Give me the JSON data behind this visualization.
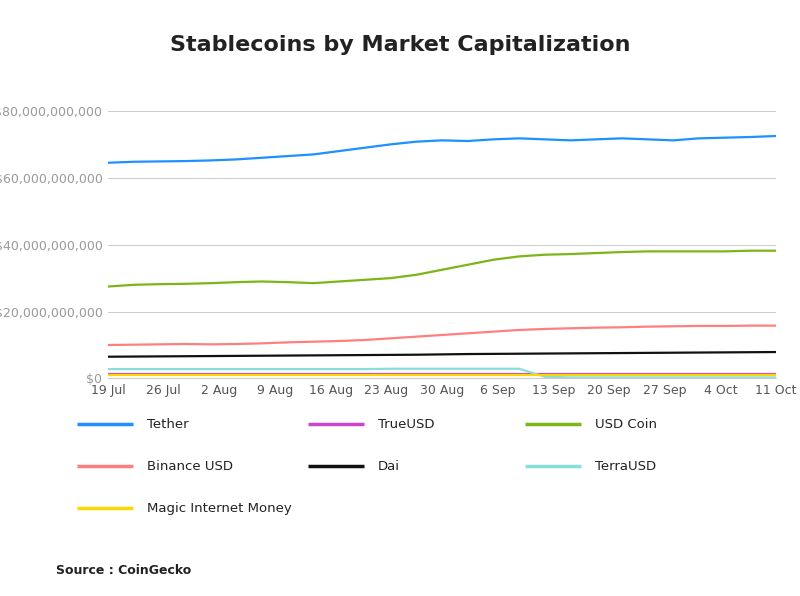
{
  "title": "Stablecoins by Market Capitalization",
  "source": "Source : CoinGecko",
  "x_labels": [
    "19 Jul",
    "26 Jul",
    "2 Aug",
    "9 Aug",
    "16 Aug",
    "23 Aug",
    "30 Aug",
    "6 Sep",
    "13 Sep",
    "20 Sep",
    "27 Sep",
    "4 Oct",
    "11 Oct"
  ],
  "ylim": [
    0,
    90000000000
  ],
  "yticks": [
    0,
    20000000000,
    40000000000,
    60000000000,
    80000000000
  ],
  "series": {
    "Tether": {
      "color": "#1E90FF",
      "data": [
        64500000000,
        64800000000,
        64900000000,
        65000000000,
        65200000000,
        65500000000,
        66000000000,
        66500000000,
        67000000000,
        68000000000,
        69000000000,
        70000000000,
        70800000000,
        71200000000,
        71000000000,
        71500000000,
        71800000000,
        71500000000,
        71200000000,
        71500000000,
        71800000000,
        71500000000,
        71200000000,
        71800000000,
        72000000000,
        72200000000,
        72500000000
      ]
    },
    "USD Coin": {
      "color": "#7CB518",
      "data": [
        27500000000,
        28000000000,
        28200000000,
        28300000000,
        28500000000,
        28800000000,
        29000000000,
        28800000000,
        28500000000,
        29000000000,
        29500000000,
        30000000000,
        31000000000,
        32500000000,
        34000000000,
        35500000000,
        36500000000,
        37000000000,
        37200000000,
        37500000000,
        37800000000,
        38000000000,
        38000000000,
        38000000000,
        38000000000,
        38200000000,
        38200000000
      ]
    },
    "Binance USD": {
      "color": "#FF7F7F",
      "data": [
        10000000000,
        10100000000,
        10200000000,
        10300000000,
        10200000000,
        10300000000,
        10500000000,
        10800000000,
        11000000000,
        11200000000,
        11500000000,
        12000000000,
        12500000000,
        13000000000,
        13500000000,
        14000000000,
        14500000000,
        14800000000,
        15000000000,
        15200000000,
        15300000000,
        15500000000,
        15600000000,
        15700000000,
        15700000000,
        15800000000,
        15800000000
      ]
    },
    "Dai": {
      "color": "#111111",
      "data": [
        6500000000,
        6550000000,
        6600000000,
        6650000000,
        6700000000,
        6750000000,
        6800000000,
        6850000000,
        6900000000,
        6950000000,
        7000000000,
        7050000000,
        7100000000,
        7200000000,
        7300000000,
        7350000000,
        7400000000,
        7450000000,
        7500000000,
        7550000000,
        7600000000,
        7650000000,
        7700000000,
        7750000000,
        7800000000,
        7850000000,
        7900000000
      ]
    },
    "TrueUSD": {
      "color": "#CC44CC",
      "data": [
        1200000000,
        1200000000,
        1200000000,
        1200000000,
        1200000000,
        1200000000,
        1200000000,
        1200000000,
        1200000000,
        1200000000,
        1200000000,
        1200000000,
        1200000000,
        1200000000,
        1200000000,
        1200000000,
        1200000000,
        1200000000,
        1200000000,
        1200000000,
        1200000000,
        1200000000,
        1200000000,
        1200000000,
        1200000000,
        1200000000,
        1200000000
      ]
    },
    "TerraUSD": {
      "color": "#88DDDD",
      "data": [
        2800000000,
        2800000000,
        2800000000,
        2800000000,
        2800000000,
        2800000000,
        2800000000,
        2800000000,
        2800000000,
        2800000000,
        2800000000,
        2900000000,
        2900000000,
        2900000000,
        2900000000,
        2900000000,
        2900000000,
        500000000,
        300000000,
        300000000,
        300000000,
        300000000,
        300000000,
        300000000,
        300000000,
        300000000,
        300000000
      ]
    },
    "Magic Internet Money": {
      "color": "#FFD700",
      "data": [
        900000000,
        900000000,
        900000000,
        900000000,
        900000000,
        900000000,
        900000000,
        900000000,
        900000000,
        900000000,
        900000000,
        900000000,
        900000000,
        900000000,
        900000000,
        900000000,
        900000000,
        900000000,
        900000000,
        900000000,
        900000000,
        900000000,
        900000000,
        900000000,
        900000000,
        900000000,
        900000000
      ]
    }
  },
  "background_color": "#FFFFFF",
  "legend_bg": "#EFEFEF",
  "grid_color": "#CCCCCC",
  "title_fontsize": 16,
  "label_fontsize": 9,
  "legend_entries_order": [
    "Tether",
    "TrueUSD",
    "USD Coin",
    "Binance USD",
    "Dai",
    "TerraUSD",
    "Magic Internet Money"
  ]
}
